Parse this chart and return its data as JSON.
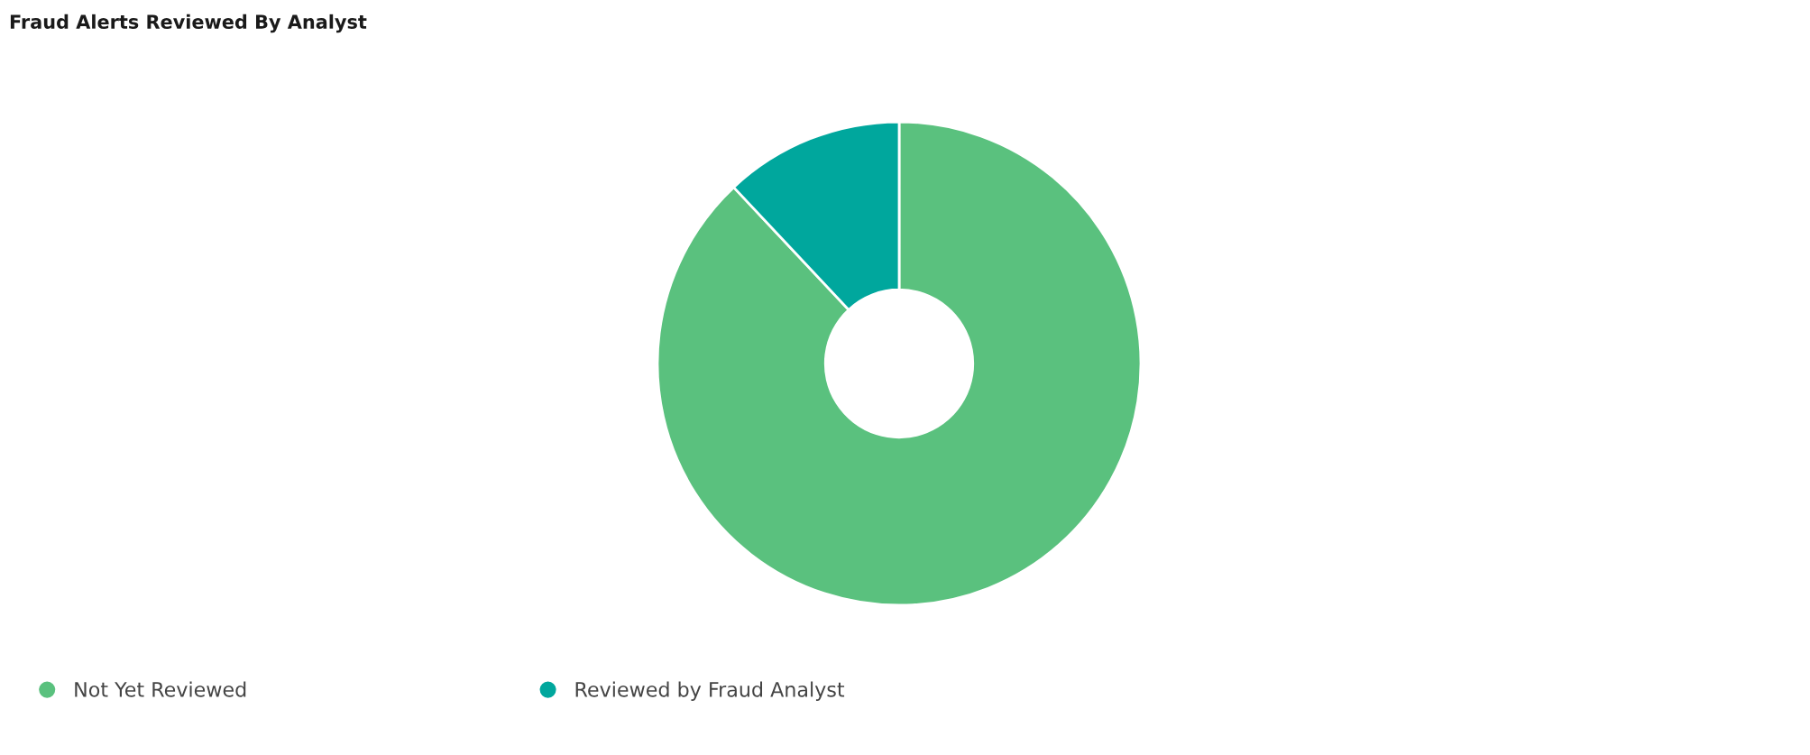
{
  "chart_data": {
    "type": "donut",
    "title": "Fraud Alerts Reviewed By Analyst",
    "categories": [
      "Not Yet Reviewed",
      "Reviewed by Fraud Analyst"
    ],
    "values": [
      88,
      12
    ],
    "colors": [
      "#5ac17e",
      "#00a79d"
    ],
    "legend": "bottom"
  }
}
